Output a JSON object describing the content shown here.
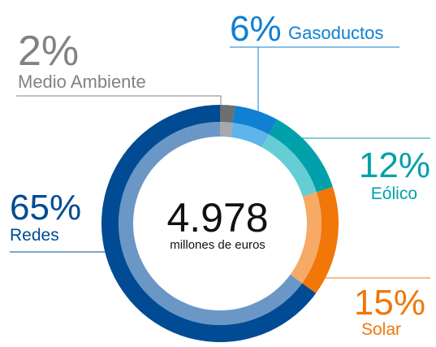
{
  "chart_data": {
    "type": "donut",
    "categories": [
      "Medio Ambiente",
      "Gasoductos",
      "Eólico",
      "Solar",
      "Redes"
    ],
    "values": [
      2,
      6,
      12,
      15,
      65
    ],
    "value_labels": [
      "2%",
      "6%",
      "12%",
      "15%",
      "65%"
    ],
    "colors": [
      "#6d6e70",
      "#0f80d2",
      "#00a1aa",
      "#f07708",
      "#004b93"
    ],
    "inner_colors": [
      "#a7a9ac",
      "#5db5ec",
      "#66cdd4",
      "#f6aa66",
      "#6b97c6"
    ],
    "label_colors": [
      "#808285",
      "#0f80d2",
      "#00a1aa",
      "#f07708",
      "#004b93"
    ],
    "annotations": [
      "4.978",
      "millones de euros"
    ]
  }
}
